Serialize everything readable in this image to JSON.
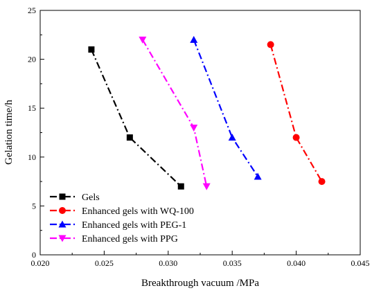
{
  "chart_data": {
    "type": "line",
    "title": "",
    "xlabel": "Breakthrough vacuum /MPa",
    "ylabel": "Gelation time/h",
    "xlim": [
      0.02,
      0.045
    ],
    "ylim": [
      0,
      25
    ],
    "xticks": [
      0.02,
      0.025,
      0.03,
      0.035,
      0.04,
      0.045
    ],
    "xtick_labels": [
      "0.020",
      "0.025",
      "0.030",
      "0.035",
      "0.040",
      "0.045"
    ],
    "yticks": [
      0,
      5,
      10,
      15,
      20,
      25
    ],
    "ytick_labels": [
      "0",
      "5",
      "10",
      "15",
      "20",
      "25"
    ],
    "grid": false,
    "legend_position": "bottom-left",
    "series": [
      {
        "name": "Gels",
        "color": "#000000",
        "marker": "square",
        "x": [
          0.024,
          0.027,
          0.031
        ],
        "y": [
          21,
          12,
          7
        ]
      },
      {
        "name": "Enhanced gels with WQ-100",
        "color": "#ff0000",
        "marker": "circle",
        "x": [
          0.038,
          0.04,
          0.042
        ],
        "y": [
          21.5,
          12,
          7.5
        ]
      },
      {
        "name": "Enhanced gels with PEG-1",
        "color": "#0000ff",
        "marker": "triangle-up",
        "x": [
          0.032,
          0.035,
          0.037
        ],
        "y": [
          22,
          12,
          8
        ]
      },
      {
        "name": "Enhanced gels with PPG",
        "color": "#ff00ff",
        "marker": "triangle-down",
        "x": [
          0.028,
          0.032,
          0.033
        ],
        "y": [
          22,
          13,
          7
        ]
      }
    ]
  }
}
